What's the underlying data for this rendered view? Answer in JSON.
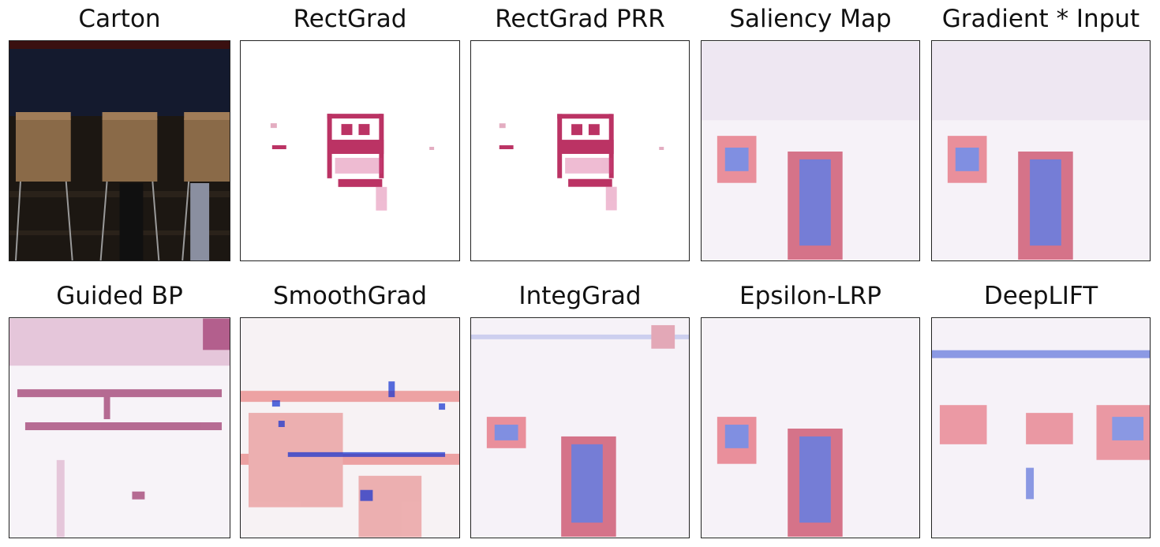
{
  "figure": {
    "panels": [
      {
        "title": "Carton",
        "kind": "photo"
      },
      {
        "title": "RectGrad",
        "kind": "sparse-positive"
      },
      {
        "title": "RectGrad PRR",
        "kind": "sparse-positive"
      },
      {
        "title": "Saliency Map",
        "kind": "diverging-center"
      },
      {
        "title": "Gradient * Input",
        "kind": "diverging-center"
      },
      {
        "title": "Guided BP",
        "kind": "positive-texture"
      },
      {
        "title": "SmoothGrad",
        "kind": "diverging-blotchy"
      },
      {
        "title": "IntegGrad",
        "kind": "diverging-center"
      },
      {
        "title": "Epsilon-LRP",
        "kind": "diverging-center"
      },
      {
        "title": "DeepLIFT",
        "kind": "diverging-wide"
      }
    ],
    "colors": {
      "positive": "#c00030",
      "negative": "#1030d0",
      "magenta": "#8a1050",
      "photo_bg": "#141a2e",
      "box": "#8a6a48"
    }
  }
}
